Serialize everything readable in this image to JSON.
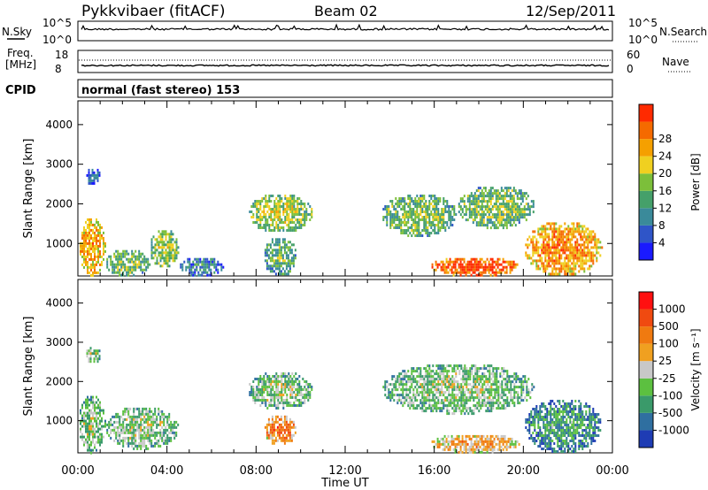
{
  "header": {
    "station": "Pykkvibaer (fitACF)",
    "beam": "Beam 02",
    "date": "12/Sep/2011"
  },
  "noise_panel": {
    "left_label": "N.Sky",
    "right_label": "N.Search",
    "left_ticks": [
      "10^5",
      "10^0"
    ],
    "right_ticks": [
      "10^5",
      "10^0"
    ]
  },
  "freq_panel": {
    "left_label_1": "Freq.",
    "left_label_2": "[MHz]",
    "right_label": "Nave",
    "left_ticks": [
      "18",
      "8"
    ],
    "right_ticks": [
      "60",
      "0"
    ]
  },
  "cpid": {
    "label": "CPID",
    "text": "normal (fast stereo) 153"
  },
  "time_axis": {
    "label": "Time UT",
    "ticks": [
      "00:00",
      "04:00",
      "08:00",
      "12:00",
      "16:00",
      "20:00",
      "00:00"
    ]
  },
  "chart_data": [
    {
      "type": "heatmap",
      "parameter": "power",
      "ylabel": "Slant Range [km]",
      "y_ticks": [
        1000,
        2000,
        3000,
        4000
      ],
      "ylim": [
        180,
        4600
      ],
      "xlim_hours": [
        0,
        24
      ],
      "colorbar": {
        "label": "Power [dB]",
        "ticks": [
          "4",
          "8",
          "12",
          "16",
          "20",
          "24",
          "28"
        ],
        "colors": [
          "#1a1aff",
          "#2f55c8",
          "#3a8a9a",
          "#45a06a",
          "#7cbf3a",
          "#f0d020",
          "#f5a000",
          "#f56a00",
          "#ff2a00"
        ]
      },
      "regions": [
        {
          "x": [
            0.0,
            1.2
          ],
          "y": [
            200,
            1700
          ],
          "level": 0.75
        },
        {
          "x": [
            0.3,
            1.0
          ],
          "y": [
            2500,
            2950
          ],
          "level": 0.2
        },
        {
          "x": [
            1.2,
            3.2
          ],
          "y": [
            200,
            900
          ],
          "level": 0.5
        },
        {
          "x": [
            3.2,
            4.5
          ],
          "y": [
            400,
            1400
          ],
          "level": 0.55
        },
        {
          "x": [
            4.5,
            6.5
          ],
          "y": [
            200,
            700
          ],
          "level": 0.3
        },
        {
          "x": [
            7.6,
            10.5
          ],
          "y": [
            1300,
            2300
          ],
          "level": 0.55
        },
        {
          "x": [
            8.3,
            9.8
          ],
          "y": [
            200,
            1200
          ],
          "level": 0.45
        },
        {
          "x": [
            13.6,
            17.0
          ],
          "y": [
            1200,
            2300
          ],
          "level": 0.5
        },
        {
          "x": [
            15.8,
            19.8
          ],
          "y": [
            200,
            700
          ],
          "level": 0.95
        },
        {
          "x": [
            17.0,
            20.5
          ],
          "y": [
            1400,
            2500
          ],
          "level": 0.5
        },
        {
          "x": [
            20.0,
            23.5
          ],
          "y": [
            200,
            1600
          ],
          "level": 0.8
        }
      ]
    },
    {
      "type": "heatmap",
      "parameter": "velocity",
      "ylabel": "Slant Range [km]",
      "y_ticks": [
        1000,
        2000,
        3000,
        4000
      ],
      "ylim": [
        180,
        4600
      ],
      "xlim_hours": [
        0,
        24
      ],
      "colorbar": {
        "label": "Velocity [m s⁻¹]",
        "ticks": [
          "1000",
          "500",
          "100",
          "25",
          "-25",
          "-100",
          "-500",
          "-1000"
        ],
        "colors": [
          "#1e3cb4",
          "#2f6fa0",
          "#3a9a6a",
          "#5cc040",
          "#c8c8c8",
          "#f0a020",
          "#f07a10",
          "#f04a10",
          "#ff1010"
        ]
      },
      "regions": [
        {
          "x": [
            0.0,
            1.2
          ],
          "y": [
            200,
            1700
          ],
          "level": 0.45
        },
        {
          "x": [
            0.3,
            1.0
          ],
          "y": [
            2500,
            2950
          ],
          "level": 0.45
        },
        {
          "x": [
            1.2,
            4.5
          ],
          "y": [
            300,
            1400
          ],
          "level": 0.45
        },
        {
          "x": [
            7.6,
            10.5
          ],
          "y": [
            1300,
            2300
          ],
          "level": 0.45
        },
        {
          "x": [
            8.3,
            9.8
          ],
          "y": [
            400,
            1200
          ],
          "level": 0.75
        },
        {
          "x": [
            13.6,
            20.5
          ],
          "y": [
            1200,
            2500
          ],
          "level": 0.45
        },
        {
          "x": [
            15.8,
            19.8
          ],
          "y": [
            200,
            700
          ],
          "level": 0.65
        },
        {
          "x": [
            20.0,
            23.5
          ],
          "y": [
            200,
            1600
          ],
          "level": 0.3
        }
      ]
    }
  ]
}
